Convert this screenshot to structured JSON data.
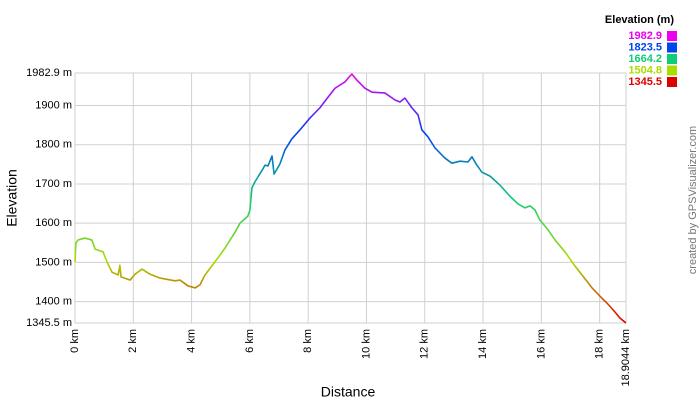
{
  "chart_data": {
    "type": "line",
    "x_label": "Distance",
    "y_label": "Elevation",
    "credit": "created by GPSVisualizer.com",
    "legend": {
      "title": "Elevation (m)",
      "items": [
        {
          "value": 1982.9,
          "color": "#ee00ee"
        },
        {
          "value": 1823.5,
          "color": "#0044ee"
        },
        {
          "value": 1664.2,
          "color": "#11cc77"
        },
        {
          "value": 1504.8,
          "color": "#aadd00"
        },
        {
          "value": 1345.5,
          "color": "#dd0000"
        }
      ]
    },
    "xlim": [
      0,
      18.9044
    ],
    "ylim": [
      1345.5,
      1982.9
    ],
    "xticks": [
      {
        "value": 0,
        "label": "0 km"
      },
      {
        "value": 2,
        "label": "2 km"
      },
      {
        "value": 4,
        "label": "4 km"
      },
      {
        "value": 6,
        "label": "6 km"
      },
      {
        "value": 8,
        "label": "8 km"
      },
      {
        "value": 10,
        "label": "10 km"
      },
      {
        "value": 12,
        "label": "12 km"
      },
      {
        "value": 14,
        "label": "14 km"
      },
      {
        "value": 16,
        "label": "16 km"
      },
      {
        "value": 18,
        "label": "18 km"
      },
      {
        "value": 18.9044,
        "label": "18.9044 km"
      }
    ],
    "yticks": [
      {
        "value": 1345.5,
        "label": "1345.5 m"
      },
      {
        "value": 1400,
        "label": "1400 m"
      },
      {
        "value": 1500,
        "label": "1500 m"
      },
      {
        "value": 1600,
        "label": "1600 m"
      },
      {
        "value": 1700,
        "label": "1700 m"
      },
      {
        "value": 1800,
        "label": "1800 m"
      },
      {
        "value": 1900,
        "label": "1900 m"
      },
      {
        "value": 1982.9,
        "label": "1982.9 m"
      }
    ],
    "grid": true,
    "x": [
      0,
      0.03,
      0.1,
      0.34,
      0.58,
      0.69,
      0.96,
      1.1,
      1.27,
      1.48,
      1.54,
      1.58,
      1.89,
      2.06,
      2.3,
      2.57,
      2.92,
      3.43,
      3.6,
      3.88,
      4.12,
      4.29,
      4.46,
      4.8,
      5.15,
      5.49,
      5.66,
      5.93,
      6.0,
      6.07,
      6.17,
      6.42,
      6.52,
      6.62,
      6.76,
      6.83,
      7.03,
      7.2,
      7.44,
      7.72,
      8.06,
      8.4,
      8.68,
      8.92,
      9.26,
      9.43,
      9.5,
      9.67,
      9.95,
      10.19,
      10.63,
      10.98,
      11.15,
      11.32,
      11.56,
      11.77,
      11.9,
      12.11,
      12.35,
      12.69,
      12.93,
      13.21,
      13.48,
      13.62,
      13.76,
      13.96,
      14.24,
      14.58,
      14.92,
      15.2,
      15.44,
      15.61,
      15.78,
      15.95,
      16.23,
      16.47,
      16.81,
      17.15,
      17.5,
      17.74,
      18.01,
      18.28,
      18.52,
      18.7,
      18.9044
    ],
    "values": [
      1501,
      1549,
      1557,
      1562,
      1557,
      1534,
      1527,
      1501,
      1475,
      1468,
      1493,
      1463,
      1455,
      1470,
      1483,
      1470,
      1460,
      1453,
      1455,
      1440,
      1435,
      1443,
      1468,
      1501,
      1537,
      1577,
      1600,
      1618,
      1633,
      1690,
      1705,
      1735,
      1748,
      1746,
      1771,
      1725,
      1751,
      1786,
      1815,
      1838,
      1868,
      1894,
      1921,
      1944,
      1960,
      1975,
      1980,
      1965,
      1944,
      1934,
      1932,
      1914,
      1909,
      1919,
      1894,
      1876,
      1838,
      1820,
      1792,
      1766,
      1753,
      1758,
      1756,
      1769,
      1751,
      1730,
      1720,
      1697,
      1669,
      1649,
      1639,
      1644,
      1634,
      1608,
      1583,
      1557,
      1527,
      1491,
      1458,
      1435,
      1414,
      1394,
      1374,
      1358,
      1345.5
    ]
  }
}
